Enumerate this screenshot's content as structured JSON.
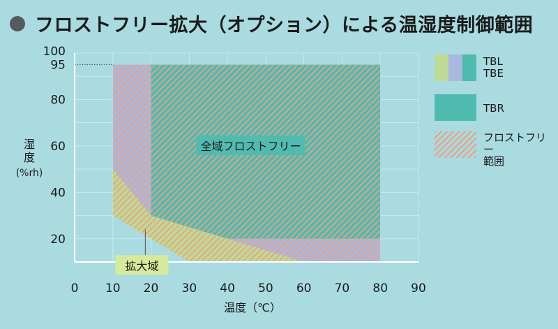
{
  "title": "フロストフリー拡大（オプション）による温湿度制御範囲",
  "chart_data": {
    "type": "area",
    "title": "フロストフリー拡大（オプション）による温湿度制御範囲",
    "xlabel": "温度（℃）",
    "ylabel_lines": [
      "湿",
      "度",
      "(%rh)"
    ],
    "xlim": [
      0,
      90
    ],
    "ylim": [
      10,
      100
    ],
    "xticks": [
      0,
      10,
      20,
      30,
      40,
      50,
      60,
      70,
      80,
      90
    ],
    "yticks": [
      20,
      40,
      60,
      80,
      95,
      100
    ],
    "grid": true,
    "reference_line": {
      "y": 95,
      "x_from": 0,
      "x_to": 10,
      "style": "dotted"
    },
    "regions": [
      {
        "name": "TBL / TBE",
        "color": "#bddb96",
        "polygon": [
          [
            10,
            50
          ],
          [
            10,
            30
          ],
          [
            30,
            10
          ],
          [
            80,
            10
          ],
          [
            80,
            20
          ],
          [
            20,
            30
          ]
        ]
      },
      {
        "name": "TBL / TBE",
        "color": "#a9b8de",
        "polygon": [
          [
            10,
            95
          ],
          [
            20,
            95
          ],
          [
            20,
            30
          ],
          [
            40,
            20
          ],
          [
            80,
            20
          ],
          [
            80,
            10
          ],
          [
            60,
            10
          ],
          [
            40,
            20
          ],
          [
            20,
            30
          ],
          [
            10,
            50
          ]
        ]
      },
      {
        "name": "TBR",
        "color": "#4fbab0",
        "polygon": [
          [
            20,
            95
          ],
          [
            80,
            95
          ],
          [
            80,
            20
          ],
          [
            40,
            20
          ],
          [
            20,
            30
          ]
        ]
      }
    ],
    "frost_free_hatch": {
      "color": "#e9a285",
      "polygon": [
        [
          10,
          95
        ],
        [
          80,
          95
        ],
        [
          80,
          10
        ],
        [
          30,
          10
        ],
        [
          10,
          30
        ]
      ]
    },
    "annotations": [
      {
        "text": "全域フロストフリー",
        "x": 45,
        "y": 60
      },
      {
        "text": "拡大域",
        "x": 16.5,
        "y": 9
      }
    ],
    "legend": {
      "placement": "right",
      "items": [
        {
          "label": "TBL\nTBE",
          "colors": [
            "#bddb96",
            "#a9b8de",
            "#4fbab0"
          ],
          "hatched": false
        },
        {
          "label": "TBR",
          "colors": [
            "#4fbab0"
          ],
          "hatched": false
        },
        {
          "label": "フロストフリー\n範囲",
          "colors": [
            "#a9dbe1"
          ],
          "hatched": true
        }
      ]
    }
  }
}
